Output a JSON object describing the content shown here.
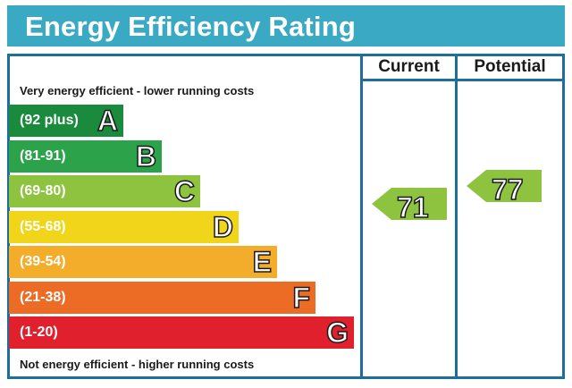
{
  "header": {
    "title": "Energy Efficiency Rating"
  },
  "columns": {
    "current_label": "Current",
    "potential_label": "Potential"
  },
  "captions": {
    "top": "Very energy efficient - lower running costs",
    "bottom": "Not energy efficient - higher running costs"
  },
  "chart_data": {
    "type": "bar",
    "categories": [
      "A",
      "B",
      "C",
      "D",
      "E",
      "F",
      "G"
    ],
    "ranges": [
      "(92 plus)",
      "(81-91)",
      "(69-80)",
      "(55-68)",
      "(39-54)",
      "(21-38)",
      "(1-20)"
    ],
    "colors": [
      "#1a8a3c",
      "#2ca24a",
      "#8dc33f",
      "#f0d51a",
      "#f3ad2b",
      "#ec6b25",
      "#e0202d"
    ],
    "current": {
      "value": 71,
      "band": "C"
    },
    "potential": {
      "value": 77,
      "band": "C"
    }
  }
}
